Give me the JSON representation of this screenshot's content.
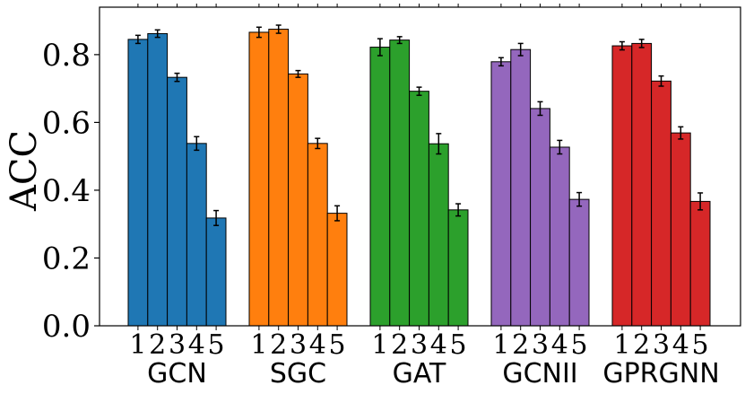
{
  "chart_data": {
    "type": "bar",
    "title": "",
    "xlabel": "",
    "ylabel": "ACC",
    "ylim": [
      0,
      0.94
    ],
    "yticks": [
      "0.0",
      "0.2",
      "0.4",
      "0.6",
      "0.8"
    ],
    "ytick_values": [
      0.0,
      0.2,
      0.4,
      0.6,
      0.8
    ],
    "sub_categories": [
      "1",
      "2",
      "3",
      "4",
      "5"
    ],
    "groups": [
      {
        "name": "GCN",
        "color": "#1f77b4",
        "values": [
          0.845,
          0.862,
          0.733,
          0.538,
          0.318
        ],
        "errors": [
          0.012,
          0.011,
          0.012,
          0.02,
          0.022
        ]
      },
      {
        "name": "SGC",
        "color": "#ff7f0e",
        "values": [
          0.866,
          0.875,
          0.743,
          0.538,
          0.332
        ],
        "errors": [
          0.015,
          0.012,
          0.01,
          0.015,
          0.022
        ]
      },
      {
        "name": "GAT",
        "color": "#2ca02c",
        "values": [
          0.822,
          0.843,
          0.692,
          0.537,
          0.342
        ],
        "errors": [
          0.025,
          0.01,
          0.012,
          0.03,
          0.018
        ]
      },
      {
        "name": "GCNII",
        "color": "#9467bd",
        "values": [
          0.779,
          0.815,
          0.641,
          0.527,
          0.373
        ],
        "errors": [
          0.012,
          0.018,
          0.02,
          0.02,
          0.02
        ]
      },
      {
        "name": "GPRGNN",
        "color": "#d62728",
        "values": [
          0.826,
          0.833,
          0.722,
          0.569,
          0.367
        ],
        "errors": [
          0.012,
          0.012,
          0.015,
          0.018,
          0.025
        ]
      }
    ]
  }
}
